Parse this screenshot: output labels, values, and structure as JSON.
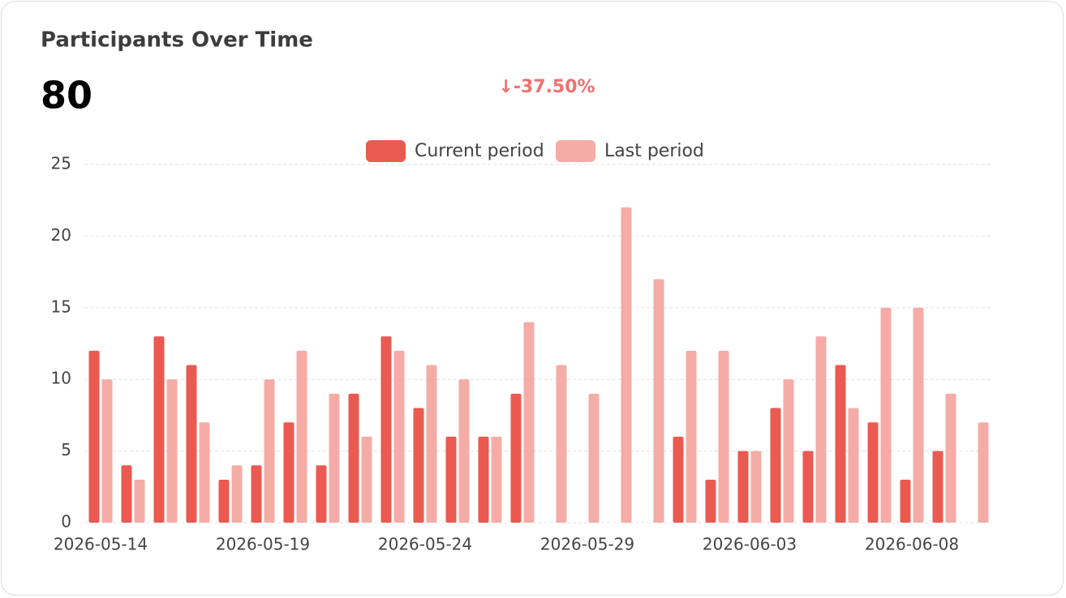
{
  "chart_data": {
    "type": "bar",
    "title": "Participants Over Time",
    "headline": "80",
    "change": "↓-37.50%",
    "categories": [
      "2026-05-14",
      null,
      null,
      null,
      null,
      "2026-05-19",
      null,
      null,
      null,
      null,
      "2026-05-24",
      null,
      null,
      null,
      null,
      "2026-05-29",
      null,
      null,
      null,
      null,
      "2026-06-03",
      null,
      null,
      null,
      null,
      "2026-06-08",
      null,
      null
    ],
    "series": [
      {
        "name": "Current period",
        "color": "#eb5a50",
        "values": [
          12,
          4,
          13,
          11,
          3,
          4,
          7,
          4,
          9,
          13,
          8,
          6,
          6,
          9,
          0,
          0,
          0,
          0,
          6,
          3,
          5,
          8,
          5,
          11,
          7,
          3,
          5,
          0
        ]
      },
      {
        "name": "Last period",
        "color": "#f5aca6",
        "values": [
          10,
          3,
          10,
          7,
          4,
          10,
          12,
          9,
          6,
          12,
          11,
          10,
          6,
          14,
          11,
          9,
          22,
          17,
          12,
          12,
          5,
          10,
          13,
          8,
          15,
          15,
          9,
          7
        ]
      }
    ],
    "ylim": [
      0,
      25
    ],
    "yticks": [
      0,
      5,
      10,
      15,
      20,
      25
    ],
    "grid": true,
    "legend": "top"
  }
}
